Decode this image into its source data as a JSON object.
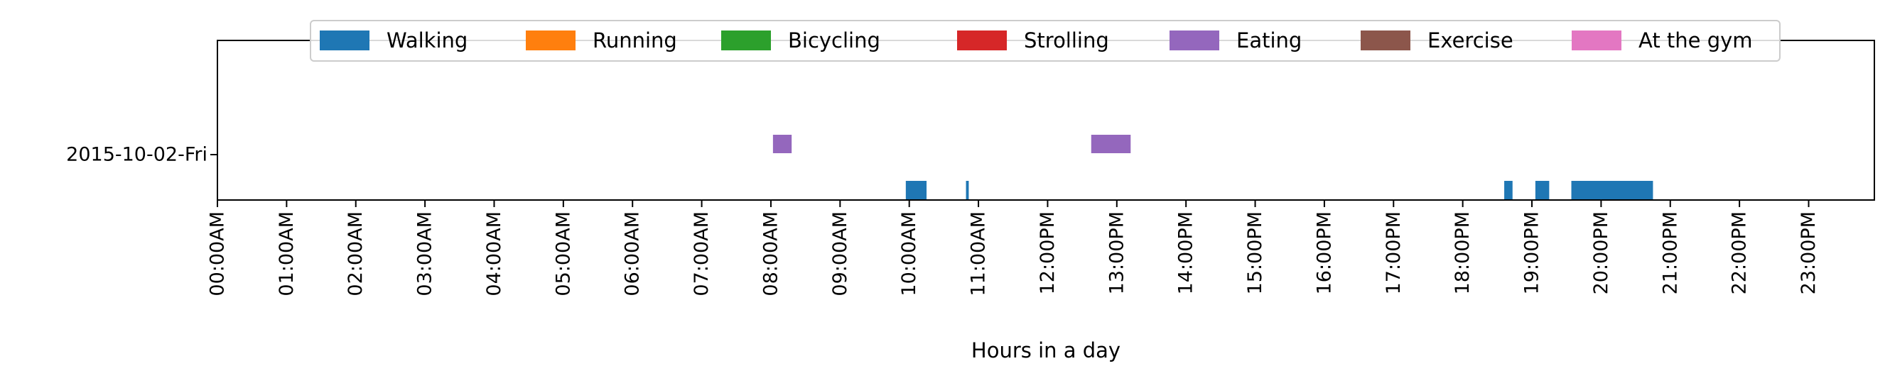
{
  "chart_data": {
    "type": "timeline",
    "xlabel": "Hours in a day",
    "xlim": [
      0,
      24
    ],
    "x_ticks": [
      "00:00AM",
      "01:00AM",
      "02:00AM",
      "03:00AM",
      "04:00AM",
      "05:00AM",
      "06:00AM",
      "07:00AM",
      "08:00AM",
      "09:00AM",
      "10:00AM",
      "11:00AM",
      "12:00PM",
      "13:00PM",
      "14:00PM",
      "15:00PM",
      "16:00PM",
      "17:00PM",
      "18:00PM",
      "19:00PM",
      "20:00PM",
      "21:00PM",
      "22:00PM",
      "23:00PM"
    ],
    "rows": [
      "2015-10-02-Fri"
    ],
    "legend_position": "top-center",
    "series": [
      {
        "name": "Walking",
        "color": "#1f77b4",
        "lane": "lower",
        "segments": [
          [
            9.95,
            10.25
          ],
          [
            10.82,
            10.86
          ],
          [
            18.6,
            18.72
          ],
          [
            19.05,
            19.25
          ],
          [
            19.57,
            20.75
          ]
        ]
      },
      {
        "name": "Running",
        "color": "#ff7f0e",
        "lane": "lower",
        "segments": []
      },
      {
        "name": "Bicycling",
        "color": "#2ca02c",
        "lane": "lower",
        "segments": []
      },
      {
        "name": "Strolling",
        "color": "#d62728",
        "lane": "lower",
        "segments": []
      },
      {
        "name": "Eating",
        "color": "#9467bd",
        "lane": "upper",
        "segments": [
          [
            8.03,
            8.3
          ],
          [
            12.63,
            13.2
          ]
        ]
      },
      {
        "name": "Exercise",
        "color": "#8c564b",
        "lane": "upper",
        "segments": []
      },
      {
        "name": "At the gym",
        "color": "#e377c2",
        "lane": "upper",
        "segments": []
      }
    ]
  }
}
